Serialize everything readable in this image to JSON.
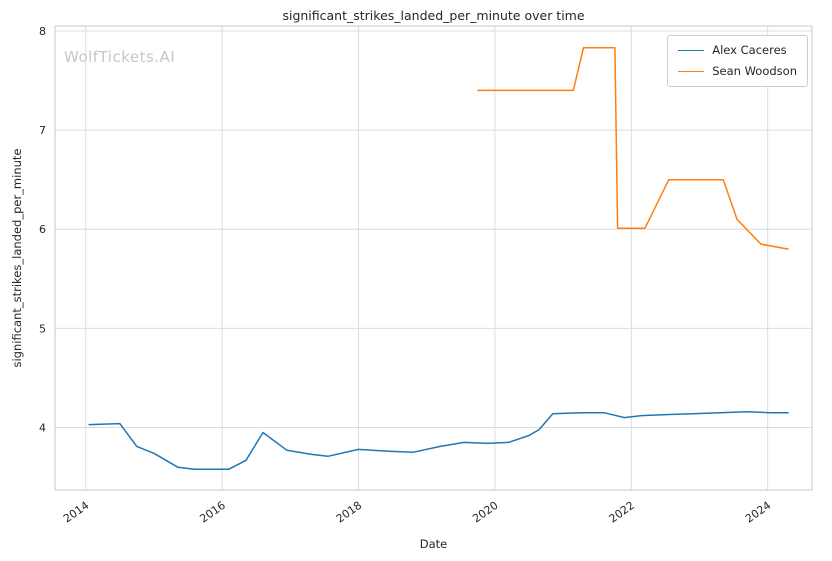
{
  "watermark": "WolfTickets.AI",
  "chart_data": {
    "type": "line",
    "title": "significant_strikes_landed_per_minute over time",
    "xlabel": "Date",
    "ylabel": "significant_strikes_landed_per_minute",
    "xlim": [
      2013.55,
      2024.65
    ],
    "ylim": [
      3.37,
      8.05
    ],
    "x_ticks": [
      2014,
      2016,
      2018,
      2020,
      2022,
      2024
    ],
    "y_ticks": [
      4,
      5,
      6,
      7,
      8
    ],
    "grid": true,
    "grid_color": "#dcdcdc",
    "border_color": "#c9c9c9",
    "legend_position": "upper right",
    "series": [
      {
        "name": "Alex Caceres",
        "color": "#1f77b4",
        "x": [
          2014.05,
          2014.5,
          2014.75,
          2015.0,
          2015.35,
          2015.6,
          2016.1,
          2016.35,
          2016.6,
          2016.95,
          2017.3,
          2017.55,
          2018.0,
          2018.45,
          2018.8,
          2019.2,
          2019.55,
          2019.9,
          2020.2,
          2020.5,
          2020.65,
          2020.85,
          2021.25,
          2021.6,
          2021.9,
          2022.15,
          2022.5,
          2022.9,
          2023.3,
          2023.7,
          2024.05,
          2024.3
        ],
        "y": [
          4.03,
          4.04,
          3.81,
          3.74,
          3.6,
          3.58,
          3.58,
          3.67,
          3.95,
          3.77,
          3.73,
          3.71,
          3.78,
          3.76,
          3.75,
          3.81,
          3.85,
          3.84,
          3.85,
          3.92,
          3.98,
          4.14,
          4.15,
          4.15,
          4.1,
          4.12,
          4.13,
          4.14,
          4.15,
          4.16,
          4.15,
          4.15
        ]
      },
      {
        "name": "Sean Woodson",
        "color": "#ff7f0e",
        "x": [
          2019.75,
          2020.3,
          2020.9,
          2021.15,
          2021.3,
          2021.55,
          2021.76,
          2021.8,
          2022.2,
          2022.55,
          2022.9,
          2023.35,
          2023.55,
          2023.9,
          2024.3
        ],
        "y": [
          7.4,
          7.4,
          7.4,
          7.4,
          7.83,
          7.83,
          7.83,
          6.01,
          6.01,
          6.5,
          6.5,
          6.5,
          6.1,
          5.85,
          5.8
        ]
      }
    ]
  }
}
